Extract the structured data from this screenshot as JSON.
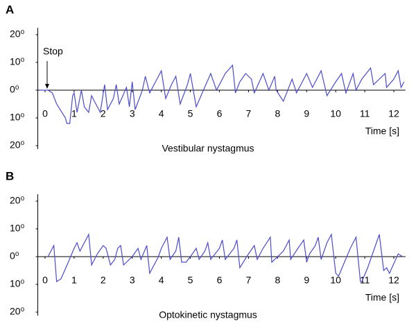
{
  "chart_data": [
    {
      "type": "line",
      "panel_label": "A",
      "caption": "Vestibular nystagmus",
      "xlabel": "Time [s]",
      "annotation": "Stop",
      "color": "#4a4acc",
      "xlim": [
        -0.25,
        12.4
      ],
      "ylim": [
        -20,
        20
      ],
      "xticks": [
        0,
        1,
        2,
        3,
        4,
        5,
        6,
        7,
        8,
        9,
        10,
        11,
        12
      ],
      "yticks": [
        {
          "value": 20,
          "label": "20⁰"
        },
        {
          "value": 10,
          "label": "10⁰"
        },
        {
          "value": 0,
          "label": "0⁰"
        },
        {
          "value": -10,
          "label": "10⁰"
        },
        {
          "value": -20,
          "label": "20⁰"
        }
      ],
      "x": [
        -0.2,
        0.1,
        0.25,
        0.4,
        0.7,
        0.75,
        0.85,
        0.95,
        1.0,
        1.1,
        1.25,
        1.35,
        1.5,
        1.6,
        1.7,
        1.9,
        2.05,
        2.15,
        2.35,
        2.45,
        2.55,
        2.8,
        2.9,
        3.0,
        3.1,
        3.35,
        3.45,
        3.6,
        3.8,
        4.0,
        4.15,
        4.35,
        4.5,
        4.65,
        4.9,
        5.0,
        5.2,
        5.45,
        5.7,
        5.9,
        6.2,
        6.45,
        6.55,
        6.7,
        6.9,
        7.1,
        7.2,
        7.5,
        7.7,
        7.9,
        7.95,
        8.2,
        8.5,
        8.65,
        8.9,
        9.0,
        9.2,
        9.5,
        9.7,
        10.0,
        10.2,
        10.35,
        10.6,
        10.7,
        10.9,
        11.2,
        11.3,
        11.5,
        11.7,
        11.75,
        12.0,
        12.15,
        12.25,
        12.35
      ],
      "values": [
        0,
        0,
        -1,
        -5,
        -10,
        -12,
        -12,
        -2,
        -1,
        -8,
        0,
        -6,
        -8,
        -2,
        -4,
        -8,
        2,
        -7,
        -3,
        2,
        -5,
        1,
        -6,
        3,
        -7,
        0,
        5,
        -1,
        3,
        7,
        -3,
        2,
        5,
        -5,
        2,
        6,
        -6,
        0,
        6,
        0,
        6,
        9,
        -1,
        3,
        6,
        4,
        -1,
        6,
        0,
        5,
        0,
        -4,
        4,
        -1,
        4,
        6,
        1,
        7,
        -2,
        3,
        6,
        -1,
        6,
        0,
        4,
        8,
        2,
        4,
        6,
        1,
        4,
        7,
        1,
        3
      ]
    },
    {
      "type": "line",
      "panel_label": "B",
      "caption": "Optokinetic nystagmus",
      "xlabel": "Time [s]",
      "color": "#4a4acc",
      "xlim": [
        -0.25,
        12.4
      ],
      "ylim": [
        -20,
        20
      ],
      "xticks": [
        0,
        1,
        2,
        3,
        4,
        5,
        6,
        7,
        8,
        9,
        10,
        11,
        12
      ],
      "yticks": [
        {
          "value": 20,
          "label": "20⁰"
        },
        {
          "value": 10,
          "label": "10⁰"
        },
        {
          "value": 0,
          "label": "0⁰"
        },
        {
          "value": -10,
          "label": "10⁰"
        },
        {
          "value": -20,
          "label": "20⁰"
        }
      ],
      "x": [
        0.1,
        0.3,
        0.4,
        0.55,
        0.8,
        1.0,
        1.1,
        1.2,
        1.5,
        1.6,
        1.8,
        2.0,
        2.1,
        2.25,
        2.4,
        2.5,
        2.6,
        2.7,
        3.0,
        3.2,
        3.3,
        3.5,
        3.6,
        3.9,
        4.0,
        4.2,
        4.3,
        4.5,
        4.6,
        4.7,
        4.85,
        5.0,
        5.2,
        5.3,
        5.5,
        5.6,
        5.7,
        6.0,
        6.1,
        6.2,
        6.5,
        6.6,
        6.7,
        7.0,
        7.2,
        7.3,
        7.5,
        7.75,
        7.8,
        8.2,
        8.4,
        8.45,
        8.7,
        8.9,
        9.0,
        9.1,
        9.3,
        9.4,
        9.5,
        9.7,
        9.85,
        10.0,
        10.1,
        10.3,
        10.5,
        10.7,
        10.85,
        10.9,
        11.1,
        11.3,
        11.5,
        11.65,
        11.75,
        11.85,
        12.15,
        12.3
      ],
      "values": [
        0,
        4,
        -9,
        -8,
        -2,
        3,
        5,
        2,
        8,
        -3,
        1,
        4,
        3,
        -3,
        -1,
        3,
        4,
        -3,
        0,
        3,
        -1,
        4,
        -6,
        0,
        3,
        7,
        -1,
        2,
        7,
        -2,
        -2,
        0,
        3,
        -1,
        2,
        5,
        -1,
        3,
        6,
        -1,
        3,
        6,
        -4,
        1,
        4,
        -1,
        3,
        7,
        -2,
        2,
        6,
        -1,
        3,
        6,
        -2,
        1,
        4,
        7,
        -1,
        5,
        8,
        -6,
        -7,
        -2,
        3,
        7,
        -9,
        -9,
        -4,
        2,
        8,
        -5,
        -4,
        -6,
        1,
        0
      ]
    }
  ]
}
